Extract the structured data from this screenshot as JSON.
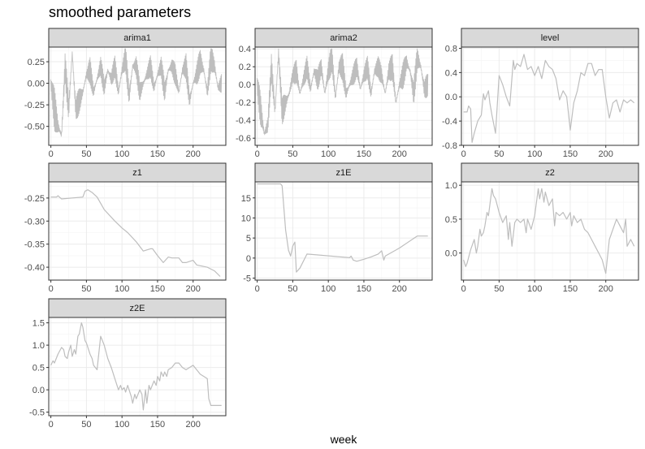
{
  "figure": {
    "title": "smoothed parameters",
    "xlabel": "week"
  },
  "style": {
    "line_color": "#bebebe",
    "strip_fill": "#d9d9d9",
    "panel_border": "#333333",
    "grid_major": "#ebebeb",
    "grid_minor": "#f4f4f4"
  },
  "chart_data": [
    {
      "type": "line",
      "panel": "arima1",
      "noisy": true,
      "xlim": [
        -3,
        246
      ],
      "xticks": [
        0,
        50,
        100,
        150,
        200
      ],
      "ylim": [
        -0.72,
        0.42
      ],
      "yticks": [
        -0.5,
        -0.25,
        0.0,
        0.25
      ],
      "ytick_labels": [
        "-0.50",
        "-0.25",
        "0.00",
        "0.25"
      ],
      "x": [
        0,
        5,
        10,
        15,
        20,
        25,
        30,
        35,
        40,
        45,
        50,
        55,
        60,
        65,
        70,
        75,
        80,
        85,
        90,
        95,
        100,
        105,
        110,
        115,
        120,
        125,
        130,
        135,
        140,
        145,
        150,
        155,
        160,
        165,
        170,
        175,
        180,
        185,
        190,
        195,
        200,
        205,
        210,
        215,
        220,
        225,
        230,
        235,
        240
      ],
      "y": [
        0.0,
        -0.3,
        -0.5,
        -0.6,
        0.2,
        -0.3,
        0.35,
        -0.3,
        -0.2,
        -0.1,
        0.1,
        0.15,
        -0.1,
        0.05,
        0.2,
        -0.05,
        0.15,
        0.05,
        0.2,
        -0.1,
        0.15,
        0.3,
        -0.15,
        0.2,
        0.2,
        -0.1,
        0.0,
        0.1,
        0.2,
        -0.05,
        0.1,
        0.2,
        -0.1,
        0.15,
        0.2,
        0.1,
        -0.1,
        0.15,
        0.2,
        -0.2,
        0.0,
        0.1,
        0.25,
        0.15,
        -0.1,
        0.3,
        0.2,
        -0.05,
        0.0
      ],
      "amp": [
        0.08,
        0.25,
        0.22,
        0.12,
        0.15,
        0.2,
        0.15,
        0.15,
        0.15,
        0.15,
        0.08,
        0.15,
        0.12,
        0.12,
        0.12,
        0.12,
        0.12,
        0.12,
        0.12,
        0.15,
        0.15,
        0.15,
        0.15,
        0.15,
        0.15,
        0.12,
        0.12,
        0.12,
        0.12,
        0.12,
        0.12,
        0.12,
        0.15,
        0.12,
        0.12,
        0.12,
        0.08,
        0.12,
        0.15,
        0.12,
        0.08,
        0.15,
        0.15,
        0.12,
        0.15,
        0.15,
        0.15,
        0.15,
        0.12
      ]
    },
    {
      "type": "line",
      "panel": "arima2",
      "noisy": true,
      "xlim": [
        -3,
        246
      ],
      "xticks": [
        0,
        50,
        100,
        150,
        200
      ],
      "ylim": [
        -0.68,
        0.42
      ],
      "yticks": [
        -0.6,
        -0.4,
        -0.2,
        0.0,
        0.2,
        0.4
      ],
      "ytick_labels": [
        "-0.6",
        "-0.4",
        "-0.2",
        "0.0",
        "0.2",
        "0.4"
      ],
      "x": [
        0,
        5,
        10,
        15,
        20,
        25,
        30,
        35,
        40,
        45,
        50,
        55,
        60,
        65,
        70,
        75,
        80,
        85,
        90,
        95,
        100,
        105,
        110,
        115,
        120,
        125,
        130,
        135,
        140,
        145,
        150,
        155,
        160,
        165,
        170,
        175,
        180,
        185,
        190,
        195,
        200,
        205,
        210,
        215,
        220,
        225,
        230,
        235,
        240
      ],
      "y": [
        0.0,
        -0.3,
        -0.55,
        -0.45,
        0.2,
        -0.3,
        0.35,
        -0.3,
        -0.2,
        -0.1,
        0.1,
        0.15,
        -0.1,
        0.05,
        0.2,
        -0.05,
        0.15,
        0.05,
        0.2,
        -0.1,
        0.15,
        0.3,
        -0.15,
        0.2,
        0.2,
        -0.1,
        0.0,
        0.1,
        0.2,
        -0.05,
        0.1,
        0.2,
        -0.1,
        0.15,
        0.2,
        0.1,
        -0.1,
        0.15,
        0.2,
        -0.2,
        0.0,
        0.1,
        0.25,
        0.15,
        -0.1,
        0.3,
        0.2,
        -0.05,
        0.0
      ],
      "amp": [
        0.08,
        0.25,
        0.2,
        0.12,
        0.15,
        0.2,
        0.15,
        0.15,
        0.15,
        0.15,
        0.08,
        0.15,
        0.12,
        0.12,
        0.12,
        0.12,
        0.12,
        0.12,
        0.12,
        0.15,
        0.15,
        0.15,
        0.15,
        0.15,
        0.15,
        0.12,
        0.12,
        0.12,
        0.12,
        0.12,
        0.12,
        0.12,
        0.15,
        0.12,
        0.12,
        0.12,
        0.08,
        0.12,
        0.15,
        0.12,
        0.08,
        0.15,
        0.15,
        0.12,
        0.15,
        0.15,
        0.15,
        0.15,
        0.12
      ]
    },
    {
      "type": "line",
      "panel": "level",
      "xlim": [
        -3,
        246
      ],
      "xticks": [
        0,
        50,
        100,
        150,
        200
      ],
      "ylim": [
        -0.8,
        0.82
      ],
      "yticks": [
        -0.8,
        -0.4,
        0.0,
        0.4,
        0.8
      ],
      "ytick_labels": [
        "-0.8",
        "-0.4",
        "0.0",
        "0.4",
        "0.8"
      ],
      "x": [
        0,
        5,
        7,
        10,
        12,
        15,
        20,
        25,
        28,
        30,
        35,
        37,
        40,
        45,
        50,
        55,
        60,
        65,
        70,
        72,
        75,
        80,
        85,
        90,
        95,
        100,
        105,
        110,
        115,
        120,
        125,
        130,
        135,
        140,
        145,
        150,
        155,
        160,
        165,
        170,
        175,
        180,
        185,
        190,
        195,
        200,
        205,
        210,
        215,
        220,
        225,
        230,
        235,
        240
      ],
      "y": [
        -0.25,
        -0.25,
        -0.15,
        -0.2,
        -0.75,
        -0.6,
        -0.4,
        -0.3,
        0.05,
        -0.05,
        0.1,
        -0.1,
        -0.3,
        -0.6,
        0.35,
        0.2,
        0.0,
        -0.15,
        0.6,
        0.45,
        0.55,
        0.5,
        0.7,
        0.45,
        0.5,
        0.35,
        0.5,
        0.3,
        0.6,
        0.5,
        0.45,
        0.3,
        -0.05,
        0.1,
        0.0,
        -0.55,
        -0.1,
        0.1,
        0.4,
        0.35,
        0.55,
        0.55,
        0.35,
        0.45,
        0.45,
        0.0,
        -0.35,
        -0.1,
        -0.05,
        -0.25,
        -0.05,
        -0.1,
        -0.05,
        -0.1
      ]
    },
    {
      "type": "line",
      "panel": "z1",
      "xlim": [
        -3,
        246
      ],
      "xticks": [
        0,
        50,
        100,
        150,
        200
      ],
      "ylim": [
        -0.428,
        -0.215
      ],
      "yticks": [
        -0.4,
        -0.35,
        -0.3,
        -0.25
      ],
      "ytick_labels": [
        "-0.40",
        "-0.35",
        "-0.30",
        "-0.25"
      ],
      "x": [
        0,
        8,
        10,
        12,
        15,
        45,
        48,
        52,
        58,
        65,
        75,
        90,
        100,
        108,
        120,
        130,
        140,
        143,
        150,
        158,
        165,
        170,
        180,
        185,
        190,
        200,
        205,
        220,
        230,
        238
      ],
      "y": [
        -0.248,
        -0.248,
        -0.245,
        -0.248,
        -0.252,
        -0.248,
        -0.235,
        -0.232,
        -0.238,
        -0.248,
        -0.275,
        -0.3,
        -0.315,
        -0.325,
        -0.345,
        -0.365,
        -0.36,
        -0.36,
        -0.375,
        -0.39,
        -0.378,
        -0.38,
        -0.38,
        -0.39,
        -0.39,
        -0.385,
        -0.395,
        -0.4,
        -0.408,
        -0.42
      ]
    },
    {
      "type": "line",
      "panel": "z1E",
      "xlim": [
        -3,
        246
      ],
      "xticks": [
        0,
        50,
        100,
        150,
        200
      ],
      "ylim": [
        -5.5,
        19
      ],
      "yticks": [
        -5,
        0,
        5,
        10,
        15
      ],
      "ytick_labels": [
        "-5",
        "0",
        "5",
        "10",
        "15"
      ],
      "x": [
        0,
        33,
        35,
        40,
        44,
        47,
        50,
        53,
        55,
        60,
        70,
        130,
        132,
        135,
        140,
        150,
        160,
        170,
        175,
        178,
        180,
        200,
        225,
        240
      ],
      "y": [
        18.5,
        18.5,
        18.0,
        7,
        2,
        0.5,
        3,
        4,
        -3.5,
        -2.5,
        1.0,
        0.1,
        0.5,
        -0.5,
        -0.8,
        -0.3,
        0.3,
        1.0,
        1.8,
        -0.5,
        0.5,
        2.5,
        5.5,
        5.5
      ]
    },
    {
      "type": "line",
      "panel": "z2",
      "xlim": [
        -3,
        246
      ],
      "xticks": [
        0,
        50,
        100,
        150,
        200
      ],
      "ylim": [
        -0.4,
        1.05
      ],
      "yticks": [
        0.0,
        0.5,
        1.0
      ],
      "ytick_labels": [
        "0.0",
        "0.5",
        "1.0"
      ],
      "x": [
        0,
        3,
        5,
        10,
        15,
        18,
        20,
        23,
        25,
        28,
        30,
        33,
        35,
        40,
        42,
        45,
        50,
        55,
        60,
        63,
        65,
        68,
        72,
        75,
        80,
        85,
        88,
        90,
        95,
        100,
        105,
        107,
        110,
        113,
        115,
        120,
        125,
        128,
        130,
        135,
        140,
        145,
        150,
        152,
        155,
        160,
        165,
        170,
        175,
        180,
        185,
        190,
        195,
        200,
        205,
        210,
        215,
        220,
        225,
        228,
        230,
        235,
        240
      ],
      "y": [
        -0.1,
        -0.2,
        -0.15,
        0.05,
        0.2,
        0.0,
        0.1,
        0.35,
        0.25,
        0.3,
        0.4,
        0.6,
        0.55,
        0.95,
        0.85,
        0.8,
        0.6,
        0.45,
        0.55,
        0.2,
        0.45,
        0.1,
        0.45,
        0.5,
        0.45,
        0.5,
        0.3,
        0.5,
        0.35,
        0.55,
        0.95,
        0.8,
        0.95,
        0.75,
        0.9,
        0.7,
        0.8,
        0.4,
        0.6,
        0.55,
        0.6,
        0.5,
        0.6,
        0.4,
        0.55,
        0.45,
        0.5,
        0.35,
        0.3,
        0.2,
        0.1,
        0.0,
        -0.1,
        -0.3,
        0.2,
        0.35,
        0.5,
        0.4,
        0.3,
        0.5,
        0.1,
        0.2,
        0.1
      ]
    },
    {
      "type": "line",
      "panel": "z2E",
      "xlim": [
        -3,
        246
      ],
      "xticks": [
        0,
        50,
        100,
        150,
        200
      ],
      "ylim": [
        -0.58,
        1.62
      ],
      "yticks": [
        -0.5,
        0.0,
        0.5,
        1.0,
        1.5
      ],
      "ytick_labels": [
        "-0.5",
        "0.0",
        "0.5",
        "1.0",
        "1.5"
      ],
      "x": [
        0,
        3,
        5,
        10,
        15,
        18,
        20,
        23,
        25,
        28,
        30,
        33,
        35,
        38,
        40,
        43,
        45,
        48,
        50,
        55,
        58,
        60,
        65,
        70,
        75,
        80,
        85,
        90,
        95,
        98,
        100,
        103,
        105,
        108,
        110,
        113,
        115,
        118,
        120,
        125,
        128,
        130,
        133,
        135,
        138,
        140,
        145,
        148,
        150,
        153,
        155,
        158,
        160,
        163,
        165,
        170,
        175,
        180,
        185,
        190,
        195,
        200,
        205,
        210,
        215,
        220,
        222,
        225,
        230,
        235,
        240
      ],
      "y": [
        0.55,
        0.65,
        0.6,
        0.8,
        0.95,
        0.9,
        0.75,
        0.7,
        0.85,
        1.0,
        0.75,
        0.9,
        0.8,
        1.2,
        1.25,
        1.5,
        1.4,
        1.1,
        1.05,
        0.8,
        0.7,
        0.55,
        0.45,
        1.2,
        1.0,
        0.7,
        0.5,
        0.25,
        0.0,
        0.1,
        0.0,
        0.05,
        -0.05,
        0.1,
        0.0,
        -0.15,
        -0.3,
        -0.1,
        -0.2,
        0.0,
        -0.1,
        -0.45,
        0.0,
        -0.3,
        0.1,
        0.0,
        0.2,
        0.1,
        0.3,
        0.2,
        0.4,
        0.3,
        0.4,
        0.3,
        0.45,
        0.5,
        0.6,
        0.6,
        0.5,
        0.45,
        0.5,
        0.55,
        0.45,
        0.35,
        0.3,
        0.25,
        -0.2,
        -0.35,
        -0.35,
        -0.35,
        -0.35
      ]
    }
  ]
}
